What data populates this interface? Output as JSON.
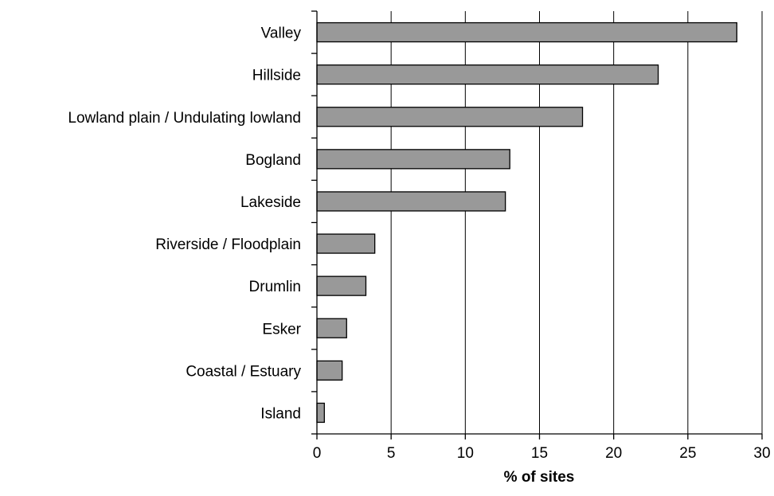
{
  "chart_data": {
    "type": "bar",
    "orientation": "horizontal",
    "categories": [
      "Valley",
      "Hillside",
      "Lowland plain / Undulating lowland",
      "Bogland",
      "Lakeside",
      "Riverside / Floodplain",
      "Drumlin",
      "Esker",
      "Coastal / Estuary",
      "Island"
    ],
    "values": [
      28.3,
      23.0,
      17.9,
      13.0,
      12.7,
      3.9,
      3.3,
      2.0,
      1.7,
      0.5
    ],
    "xlabel": "% of sites",
    "ylabel": "",
    "xlim": [
      0,
      30
    ],
    "xticks": [
      0,
      5,
      10,
      15,
      20,
      25,
      30
    ],
    "xtick_labels": [
      "0",
      "5",
      "10",
      "15",
      "20",
      "25",
      "30"
    ],
    "grid": "vertical",
    "legend": "none",
    "bar_color": "#999999",
    "bar_edge_color": "#000000"
  }
}
